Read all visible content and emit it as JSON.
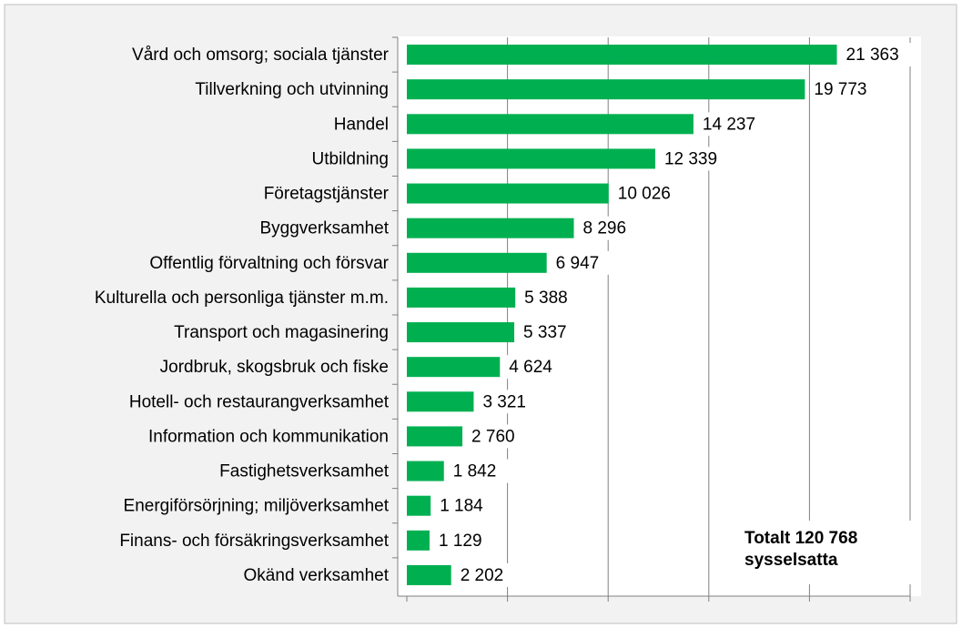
{
  "chart_data": {
    "type": "barh",
    "categories": [
      "Vård och omsorg; sociala tjänster",
      "Tillverkning och utvinning",
      "Handel",
      "Utbildning",
      "Företagstjänster",
      "Byggverksamhet",
      "Offentlig förvaltning och försvar",
      "Kulturella och personliga tjänster m.m.",
      "Transport och magasinering",
      "Jordbruk, skogsbruk och fiske",
      "Hotell- och restaurangverksamhet",
      "Information och kommunikation",
      "Fastighetsverksamhet",
      "Energiförsörjning; miljöverksamhet",
      "Finans- och försäkringsverksamhet",
      "Okänd verksamhet"
    ],
    "values": [
      21363,
      19773,
      14237,
      12339,
      10026,
      8296,
      6947,
      5388,
      5337,
      4624,
      3321,
      2760,
      1842,
      1184,
      1129,
      2202
    ],
    "value_labels": [
      "21 363",
      "19 773",
      "14 237",
      "12 339",
      "10 026",
      "8 296",
      "6 947",
      "5 388",
      "5 337",
      "4 624",
      "3 321",
      "2 760",
      "1 842",
      "1 184",
      "1 129",
      "2 202"
    ],
    "color": "#00b050",
    "xlim": [
      0,
      25000
    ],
    "xticks": [
      0,
      5000,
      10000,
      15000,
      20000,
      25000
    ],
    "grid": true,
    "annotation": [
      "Totalt 120 768",
      "sysselsatta"
    ]
  }
}
